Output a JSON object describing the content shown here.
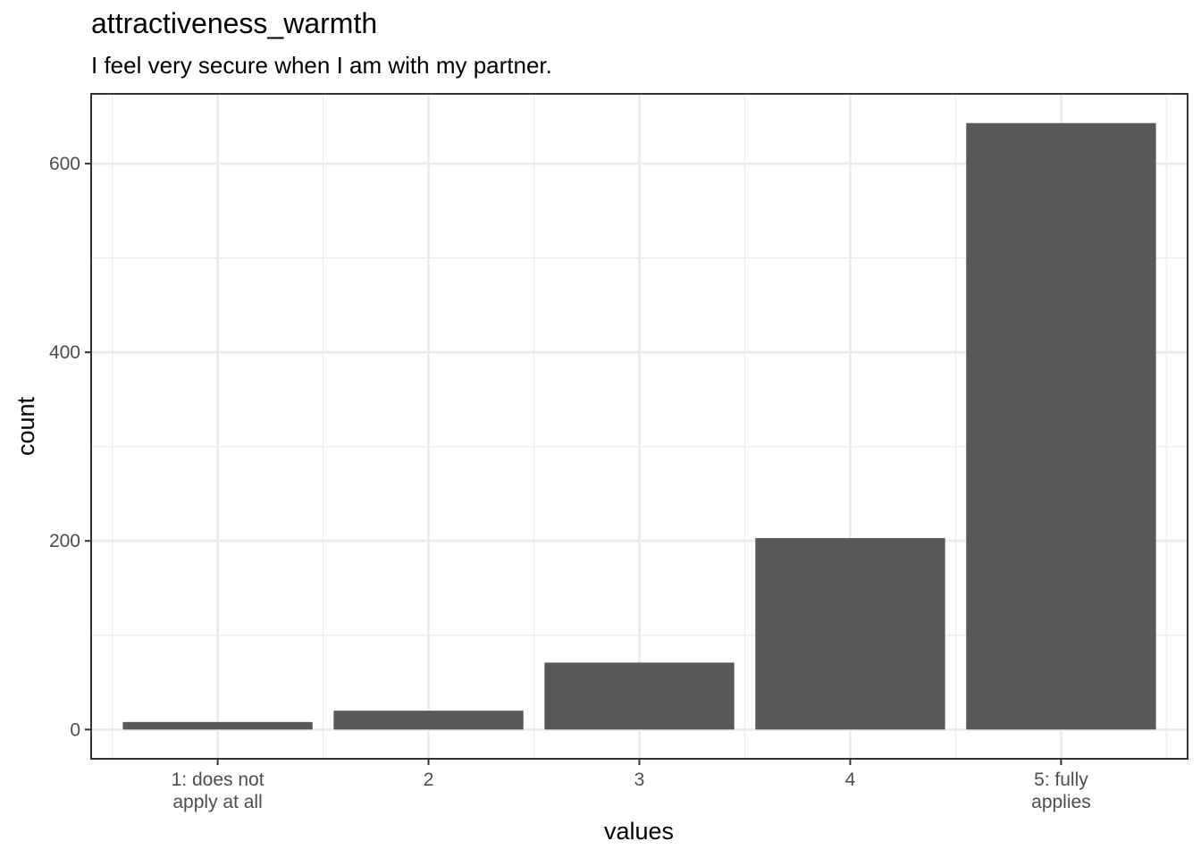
{
  "chart_data": {
    "type": "bar",
    "title": "attractiveness_warmth",
    "subtitle": "I feel very secure when I am with my partner.",
    "xlabel": "values",
    "ylabel": "count",
    "categories": [
      "1: does not\napply at all",
      "2",
      "3",
      "4",
      "5: fully\napplies"
    ],
    "values": [
      8,
      20,
      71,
      203,
      643
    ],
    "yticks": [
      0,
      200,
      400,
      600
    ],
    "ylim": [
      -31,
      674
    ],
    "grid": true,
    "theme": "bw",
    "bar_color": "#595959"
  }
}
